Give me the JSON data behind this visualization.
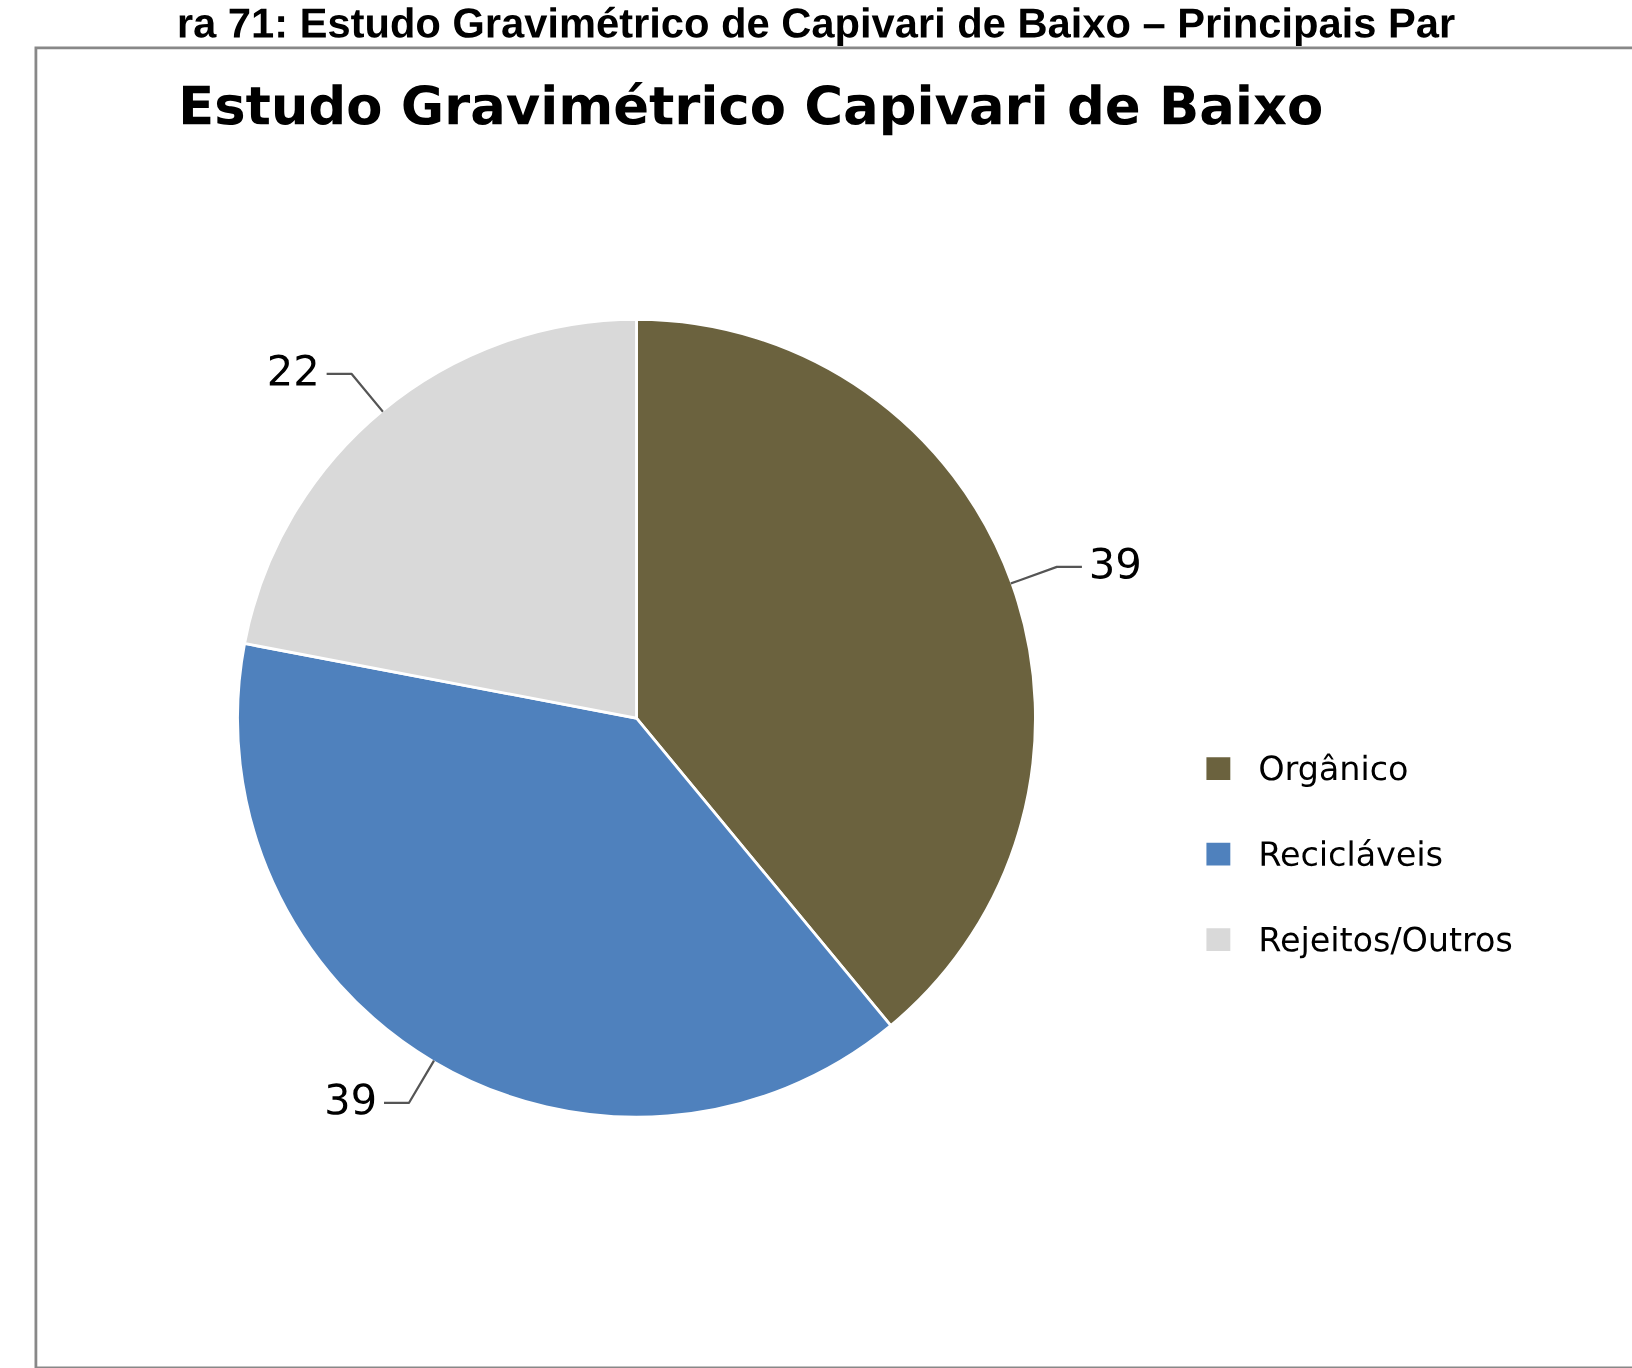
{
  "chart_data": {
    "type": "pie",
    "title": "Estudo Gravimétrico Capivari de Baixo",
    "annotations": [
      "ra 71: Estudo Gravimétrico de Capivari de Baixo – Principais Par"
    ],
    "categories": [
      "Orgânico",
      "Recicláveis",
      "Rejeitos/Outros"
    ],
    "values": [
      39,
      39,
      22
    ],
    "colors": [
      "#6b623e",
      "#4f81bd",
      "#d9d9d9"
    ],
    "data_labels": true,
    "legend": "right"
  }
}
